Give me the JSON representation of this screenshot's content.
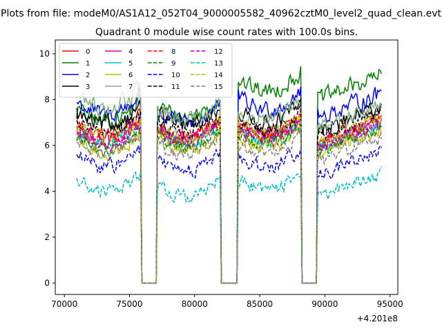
{
  "chart_data": {
    "type": "line",
    "suptitle": "Plots from file: modeM0/AS1A12_052T04_9000005582_40962cztM0_level2_quad_clean.evt",
    "title": "Quadrant 0 module wise count rates with 100.0s bins.",
    "xlabel": "",
    "ylabel": "",
    "x_offset_label": "+4.201e8",
    "xlim": [
      69300,
      95600
    ],
    "ylim": [
      -0.5,
      10.6
    ],
    "x_ticks": [
      70000,
      75000,
      80000,
      85000,
      90000,
      95000
    ],
    "x_tick_labels": [
      "70000",
      "75000",
      "80000",
      "85000",
      "90000",
      "95000"
    ],
    "y_ticks": [
      0,
      2,
      4,
      6,
      8,
      10
    ],
    "y_tick_labels": [
      "0",
      "2",
      "4",
      "6",
      "8",
      "10"
    ],
    "x_start": 70950,
    "x_step": 100,
    "n_points": 235,
    "gaps": [
      [
        75920,
        77060
      ],
      [
        82050,
        83280
      ],
      [
        88230,
        89440
      ]
    ],
    "series": [
      {
        "name": "0",
        "color": "#ff0000",
        "dash": "solid",
        "base": [
          7.0,
          6.9,
          7.0
        ]
      },
      {
        "name": "1",
        "color": "#008000",
        "dash": "solid",
        "base": [
          7.6,
          7.8,
          8.9
        ]
      },
      {
        "name": "2",
        "color": "#0000ff",
        "dash": "solid",
        "base": [
          7.9,
          7.5,
          8.1
        ]
      },
      {
        "name": "3",
        "color": "#000000",
        "dash": "solid",
        "base": [
          7.4,
          7.4,
          7.5
        ]
      },
      {
        "name": "4",
        "color": "#bf00bf",
        "dash": "solid",
        "base": [
          6.8,
          6.8,
          6.9
        ]
      },
      {
        "name": "5",
        "color": "#00bfbf",
        "dash": "solid",
        "base": [
          6.6,
          6.6,
          6.7
        ]
      },
      {
        "name": "6",
        "color": "#bfbf00",
        "dash": "solid",
        "base": [
          6.2,
          6.3,
          6.5
        ]
      },
      {
        "name": "7",
        "color": "#80b080",
        "dash": "solid",
        "base": [
          8.2,
          7.6,
          7.6
        ]
      },
      {
        "name": "8",
        "color": "#ff0000",
        "dash": "dashed",
        "base": [
          6.7,
          6.8,
          6.9
        ]
      },
      {
        "name": "9",
        "color": "#008000",
        "dash": "dashed",
        "base": [
          6.4,
          6.5,
          6.6
        ]
      },
      {
        "name": "10",
        "color": "#0000ff",
        "dash": "dashed",
        "base": [
          5.6,
          5.4,
          5.6
        ]
      },
      {
        "name": "11",
        "color": "#000000",
        "dash": "dashed",
        "base": [
          7.1,
          7.1,
          7.2
        ]
      },
      {
        "name": "12",
        "color": "#bf00bf",
        "dash": "dashed",
        "base": [
          6.6,
          6.7,
          6.8
        ]
      },
      {
        "name": "13",
        "color": "#00bfbf",
        "dash": "dashed",
        "base": [
          4.5,
          4.3,
          4.6
        ]
      },
      {
        "name": "14",
        "color": "#bfbf00",
        "dash": "dashed",
        "base": [
          6.9,
          6.8,
          7.0
        ]
      },
      {
        "name": "15",
        "color": "#808080",
        "dash": "dashed",
        "base": [
          6.2,
          6.1,
          6.2
        ]
      }
    ]
  }
}
